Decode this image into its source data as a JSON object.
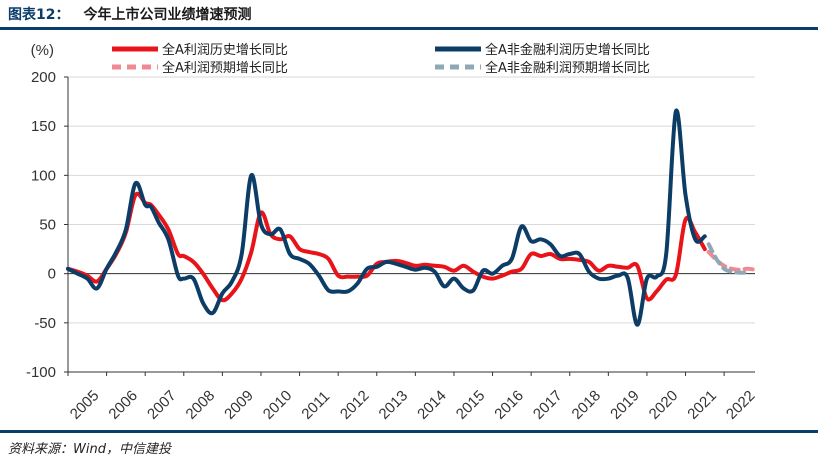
{
  "header": {
    "figure_label": "图表12：",
    "title": "今年上市公司业绩增速预测"
  },
  "source": "资料来源：Wind，中信建投",
  "chart_data": {
    "type": "line",
    "unit_label": "(%)",
    "ylim": [
      -100,
      200
    ],
    "yticks": [
      "200",
      "150",
      "100",
      "50",
      "0",
      "-50",
      "-100"
    ],
    "ytick_values": [
      200,
      150,
      100,
      50,
      0,
      -50,
      -100
    ],
    "xlim": [
      2005,
      2022.8
    ],
    "xticks": [
      "2005",
      "2006",
      "2007",
      "2008",
      "2009",
      "2010",
      "2011",
      "2012",
      "2013",
      "2014",
      "2015",
      "2016",
      "2017",
      "2018",
      "2019",
      "2020",
      "2021",
      "2022"
    ],
    "xtick_values": [
      2005,
      2006,
      2007,
      2008,
      2009,
      2010,
      2011,
      2012,
      2013,
      2014,
      2015,
      2016,
      2017,
      2018,
      2019,
      2020,
      2021,
      2022
    ],
    "grid": "horizontal",
    "legend_position": "top",
    "series": [
      {
        "name": "全A利润历史增长同比",
        "color": "#e8141a",
        "style": "solid",
        "x": [
          2005.0,
          2005.25,
          2005.5,
          2005.75,
          2006.0,
          2006.25,
          2006.5,
          2006.75,
          2007.0,
          2007.15,
          2007.35,
          2007.6,
          2007.85,
          2008.0,
          2008.25,
          2008.5,
          2008.75,
          2009.0,
          2009.25,
          2009.5,
          2009.75,
          2010.0,
          2010.25,
          2010.5,
          2010.75,
          2011.0,
          2011.25,
          2011.5,
          2011.75,
          2012.0,
          2012.25,
          2012.5,
          2012.75,
          2013.0,
          2013.25,
          2013.5,
          2013.75,
          2014.0,
          2014.25,
          2014.5,
          2014.75,
          2015.0,
          2015.25,
          2015.5,
          2015.75,
          2016.0,
          2016.25,
          2016.5,
          2016.75,
          2017.0,
          2017.25,
          2017.5,
          2017.75,
          2018.0,
          2018.25,
          2018.5,
          2018.75,
          2019.0,
          2019.25,
          2019.5,
          2019.75,
          2020.0,
          2020.25,
          2020.5,
          2020.75,
          2021.0,
          2021.25,
          2021.5
        ],
        "values": [
          5,
          2,
          -2,
          -8,
          5,
          20,
          42,
          80,
          72,
          70,
          60,
          45,
          20,
          18,
          12,
          0,
          -15,
          -27,
          -20,
          -5,
          22,
          62,
          40,
          35,
          38,
          25,
          22,
          20,
          15,
          -2,
          -3,
          -3,
          -2,
          10,
          12,
          13,
          11,
          8,
          9,
          8,
          7,
          3,
          8,
          2,
          -3,
          -5,
          -2,
          2,
          5,
          20,
          18,
          20,
          15,
          15,
          14,
          12,
          3,
          8,
          7,
          6,
          8,
          -25,
          -18,
          -6,
          -1,
          55,
          42,
          25
        ]
      },
      {
        "name": "全A非金融利润历史增长同比",
        "color": "#0c3d66",
        "style": "solid",
        "x": [
          2005.0,
          2005.25,
          2005.5,
          2005.75,
          2006.0,
          2006.25,
          2006.5,
          2006.75,
          2007.0,
          2007.15,
          2007.35,
          2007.6,
          2007.85,
          2008.0,
          2008.25,
          2008.5,
          2008.75,
          2009.0,
          2009.25,
          2009.5,
          2009.75,
          2010.0,
          2010.25,
          2010.5,
          2010.75,
          2011.0,
          2011.25,
          2011.5,
          2011.75,
          2012.0,
          2012.25,
          2012.5,
          2012.75,
          2013.0,
          2013.25,
          2013.5,
          2013.75,
          2014.0,
          2014.25,
          2014.5,
          2014.75,
          2015.0,
          2015.25,
          2015.5,
          2015.75,
          2016.0,
          2016.25,
          2016.5,
          2016.75,
          2017.0,
          2017.25,
          2017.5,
          2017.75,
          2018.0,
          2018.25,
          2018.5,
          2018.75,
          2019.0,
          2019.25,
          2019.5,
          2019.75,
          2020.0,
          2020.25,
          2020.5,
          2020.75,
          2021.0,
          2021.25,
          2021.5
        ],
        "values": [
          5,
          0,
          -5,
          -15,
          5,
          22,
          45,
          92,
          70,
          68,
          52,
          35,
          -2,
          -5,
          -5,
          -30,
          -40,
          -20,
          -8,
          20,
          100,
          50,
          40,
          45,
          20,
          15,
          10,
          -2,
          -17,
          -18,
          -18,
          -10,
          5,
          7,
          12,
          10,
          7,
          4,
          6,
          2,
          -13,
          -5,
          -15,
          -17,
          3,
          0,
          8,
          15,
          48,
          33,
          35,
          30,
          18,
          20,
          20,
          2,
          -5,
          -5,
          -2,
          -4,
          -52,
          -5,
          -3,
          20,
          165,
          80,
          35,
          38
        ]
      },
      {
        "name": "全A利润预期增长同比",
        "color": "#f08a92",
        "style": "dashed",
        "x": [
          2021.6,
          2021.8,
          2022.0,
          2022.2,
          2022.4,
          2022.6,
          2022.8
        ],
        "values": [
          22,
          14,
          8,
          5,
          4,
          5,
          4
        ]
      },
      {
        "name": "全A非金融利润预期增长同比",
        "color": "#8fa8b8",
        "style": "dashed",
        "x": [
          2021.6,
          2021.8,
          2022.0,
          2022.2,
          2022.4,
          2022.6
        ],
        "values": [
          30,
          15,
          5,
          2,
          1,
          1
        ]
      }
    ]
  }
}
